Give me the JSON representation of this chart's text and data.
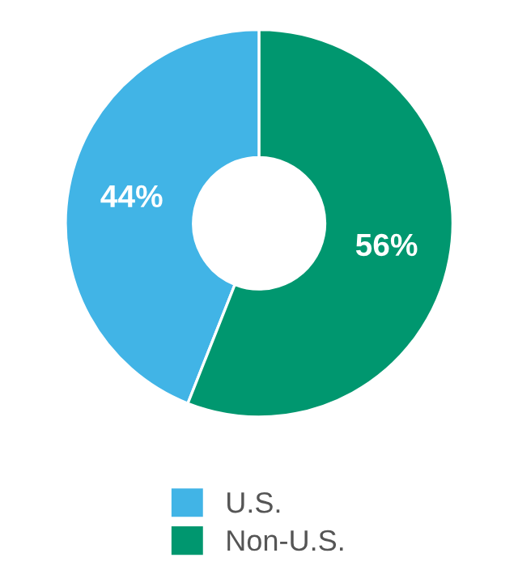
{
  "chart_data": {
    "type": "donut",
    "categories": [
      "U.S.",
      "Non-U.S."
    ],
    "values": [
      44,
      56
    ],
    "colors": [
      "#41b4e6",
      "#00976f"
    ],
    "value_labels": [
      "44%",
      "56%"
    ],
    "legend": "bottom"
  }
}
